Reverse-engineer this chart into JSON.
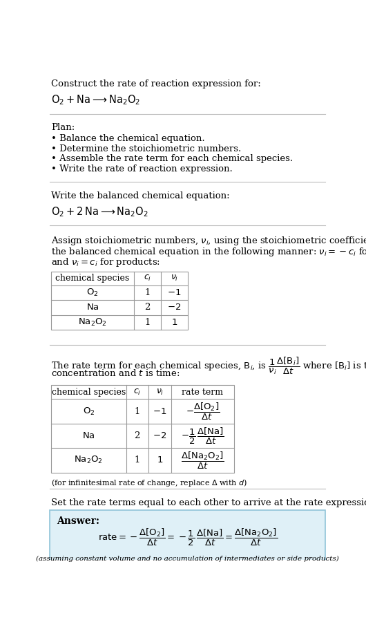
{
  "bg_color": "#ffffff",
  "text_color": "#000000",
  "answer_bg": "#dff0f7",
  "answer_border": "#90c4d8",
  "section1_title": "Construct the rate of reaction expression for:",
  "section1_eq": "$\\mathrm{O_2 + Na \\longrightarrow Na_2O_2}$",
  "section2_title": "Plan:",
  "section2_bullets": [
    "\\textbullet\\ Balance the chemical equation.",
    "\\textbullet\\ Determine the stoichiometric numbers.",
    "\\textbullet\\ Assemble the rate term for each chemical species.",
    "\\textbullet\\ Write the rate of reaction expression."
  ],
  "section3_title": "Write the balanced chemical equation:",
  "section3_eq": "$\\mathrm{O_2 + 2\\,Na \\longrightarrow Na_2O_2}$",
  "section4_intro_lines": [
    "Assign stoichiometric numbers, $\\nu_i$, using the stoichiometric coefficients, $c_i$, from",
    "the balanced chemical equation in the following manner: $\\nu_i = -c_i$ for reactants",
    "and $\\nu_i = c_i$ for products:"
  ],
  "table1_headers": [
    "chemical species",
    "$c_i$",
    "$\\nu_i$"
  ],
  "table1_rows": [
    [
      "$\\mathrm{O_2}$",
      "1",
      "$-1$"
    ],
    [
      "$\\mathrm{Na}$",
      "2",
      "$-2$"
    ],
    [
      "$\\mathrm{Na_2O_2}$",
      "1",
      "$1$"
    ]
  ],
  "section5_intro_lines": [
    "The rate term for each chemical species, $\\mathrm{B}_i$, is $\\dfrac{1}{\\nu_i}\\dfrac{\\Delta[\\mathrm{B}_i]}{\\Delta t}$ where $[\\mathrm{B}_i]$ is the amount",
    "concentration and $t$ is time:"
  ],
  "table2_headers": [
    "chemical species",
    "$c_i$",
    "$\\nu_i$",
    "rate term"
  ],
  "table2_rows": [
    [
      "$\\mathrm{O_2}$",
      "1",
      "$-1$",
      "$-\\dfrac{\\Delta[\\mathrm{O_2}]}{\\Delta t}$"
    ],
    [
      "$\\mathrm{Na}$",
      "2",
      "$-2$",
      "$-\\dfrac{1}{2}\\,\\dfrac{\\Delta[\\mathrm{Na}]}{\\Delta t}$"
    ],
    [
      "$\\mathrm{Na_2O_2}$",
      "1",
      "$1$",
      "$\\dfrac{\\Delta[\\mathrm{Na_2O_2}]}{\\Delta t}$"
    ]
  ],
  "infinitesimal_note": "(for infinitesimal rate of change, replace $\\Delta$ with $d$)",
  "section6_title": "Set the rate terms equal to each other to arrive at the rate expression:",
  "answer_label": "Answer:",
  "answer_eq": "$\\mathrm{rate} = -\\dfrac{\\Delta[\\mathrm{O_2}]}{\\Delta t} = -\\dfrac{1}{2}\\,\\dfrac{\\Delta[\\mathrm{Na}]}{\\Delta t} = \\dfrac{\\Delta[\\mathrm{Na_2O_2}]}{\\Delta t}$",
  "answer_note": "(assuming constant volume and no accumulation of intermediates or side products)"
}
